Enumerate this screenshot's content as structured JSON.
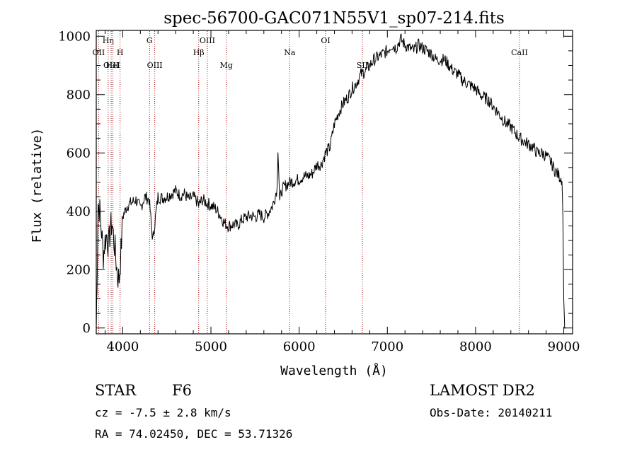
{
  "chart_data": {
    "type": "line",
    "title": "spec-56700-GAC071N55V1_sp07-214.fits",
    "xlabel": "Wavelength (Å)",
    "ylabel": "Flux (relative)",
    "xlim": [
      3700,
      9100
    ],
    "ylim": [
      -20,
      1020
    ],
    "xticks": [
      4000,
      5000,
      6000,
      7000,
      8000,
      9000
    ],
    "yticks": [
      0,
      200,
      400,
      600,
      800,
      1000
    ],
    "grid": false,
    "series": [
      {
        "x": [
          3700,
          3710,
          3720,
          3740,
          3760,
          3780,
          3800,
          3820,
          3840,
          3860,
          3880,
          3900,
          3920,
          3940,
          3960,
          3980,
          4000,
          4050,
          4100,
          4150,
          4200,
          4250,
          4300,
          4340,
          4400,
          4450,
          4500,
          4550,
          4600,
          4650,
          4700,
          4750,
          4800,
          4850,
          4861,
          4900,
          4950,
          5000,
          5050,
          5100,
          5150,
          5200,
          5250,
          5300,
          5350,
          5400,
          5450,
          5500,
          5550,
          5600,
          5650,
          5700,
          5750,
          5760,
          5780,
          5800,
          5850,
          5900,
          5950,
          6000,
          6050,
          6100,
          6150,
          6200,
          6250,
          6300,
          6350,
          6400,
          6450,
          6500,
          6550,
          6600,
          6650,
          6700,
          6750,
          6800,
          6850,
          6900,
          6950,
          7000,
          7050,
          7100,
          7150,
          7200,
          7250,
          7300,
          7350,
          7400,
          7450,
          7500,
          7550,
          7600,
          7650,
          7700,
          7750,
          7800,
          7850,
          7900,
          7950,
          8000,
          8050,
          8100,
          8150,
          8200,
          8250,
          8300,
          8350,
          8400,
          8450,
          8500,
          8550,
          8600,
          8650,
          8700,
          8750,
          8800,
          8850,
          8900,
          8950,
          8980,
          8990,
          9000,
          9010,
          9020
        ],
        "y": [
          0,
          180,
          430,
          400,
          330,
          250,
          300,
          320,
          280,
          340,
          360,
          300,
          250,
          180,
          170,
          260,
          380,
          420,
          430,
          440,
          410,
          450,
          440,
          300,
          450,
          445,
          450,
          460,
          470,
          455,
          460,
          440,
          450,
          430,
          420,
          440,
          430,
          420,
          410,
          390,
          360,
          350,
          355,
          350,
          370,
          380,
          385,
          380,
          390,
          380,
          395,
          420,
          480,
          620,
          430,
          470,
          490,
          500,
          505,
          510,
          520,
          520,
          530,
          560,
          560,
          600,
          620,
          700,
          740,
          770,
          790,
          820,
          840,
          870,
          880,
          900,
          920,
          930,
          940,
          950,
          970,
          960,
          990,
          970,
          960,
          950,
          970,
          960,
          950,
          940,
          920,
          920,
          920,
          900,
          880,
          870,
          850,
          840,
          830,
          820,
          800,
          790,
          780,
          760,
          740,
          720,
          700,
          690,
          670,
          650,
          640,
          630,
          620,
          600,
          600,
          590,
          570,
          540,
          520,
          510,
          380,
          100,
          0,
          0
        ]
      }
    ],
    "lines": [
      {
        "label": "OII",
        "x": 3727,
        "row": 2
      },
      {
        "label": "Hη",
        "x": 3835,
        "row": 1
      },
      {
        "label": "OIII",
        "x": 3869,
        "row": 3
      },
      {
        "label": "HeI",
        "x": 3889,
        "row": 3
      },
      {
        "label": "H",
        "x": 3970,
        "row": 2
      },
      {
        "label": "G",
        "x": 4304,
        "row": 1
      },
      {
        "label": "OIII",
        "x": 4363,
        "row": 3
      },
      {
        "label": "Hβ",
        "x": 4861,
        "row": 2
      },
      {
        "label": "OIII",
        "x": 4959,
        "row": 1
      },
      {
        "label": "Mg",
        "x": 5175,
        "row": 3
      },
      {
        "label": "Na",
        "x": 5893,
        "row": 2
      },
      {
        "label": "OI",
        "x": 6300,
        "row": 1
      },
      {
        "label": "SII",
        "x": 6717,
        "row": 3
      },
      {
        "label": "CaII",
        "x": 8498,
        "row": 2
      }
    ]
  },
  "info": {
    "object_class": "STAR",
    "subclass": "F6",
    "survey": "LAMOST DR2",
    "redshift": "cz = -7.5 ± 2.8 km/s",
    "obs_date": "Obs-Date: 20140211",
    "coords": "RA =  74.02450, DEC =  53.71326"
  }
}
